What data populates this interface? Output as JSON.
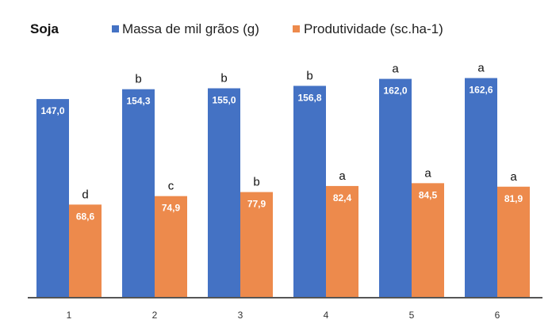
{
  "chart_data": {
    "type": "bar",
    "title": "Soja",
    "categories": [
      "1",
      "2",
      "3",
      "4",
      "5",
      "6"
    ],
    "series": [
      {
        "name": "Massa de mil grãos (g)",
        "color": "#4472C4",
        "values": [
          147.0,
          154.3,
          155.0,
          156.8,
          162.0,
          162.6
        ],
        "value_labels": [
          "147,0",
          "154,3",
          "155,0",
          "156,8",
          "162,0",
          "162,6"
        ],
        "letters": [
          "",
          "b",
          "b",
          "b",
          "a",
          "a"
        ]
      },
      {
        "name": "Produtividade (sc.ha-1)",
        "color": "#ED8A4C",
        "values": [
          68.6,
          74.9,
          77.9,
          82.4,
          84.5,
          81.9
        ],
        "value_labels": [
          "68,6",
          "74,9",
          "77,9",
          "82,4",
          "84,5",
          "81,9"
        ],
        "letters": [
          "d",
          "c",
          "b",
          "a",
          "a",
          "a"
        ]
      }
    ],
    "xlabel": "",
    "ylabel": "",
    "ylim": [
      0,
      175
    ],
    "grid": false,
    "legend": "top"
  }
}
